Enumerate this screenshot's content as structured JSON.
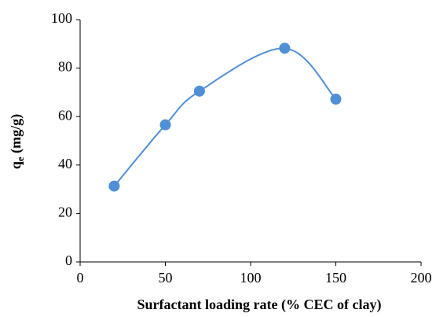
{
  "chart_data": {
    "type": "scatter-smooth",
    "x": [
      20,
      50,
      70,
      120,
      150
    ],
    "values": [
      31.3,
      56.6,
      70.5,
      88.2,
      67.2
    ],
    "color": "#4f8fd6",
    "xlim": [
      0,
      200
    ],
    "xticks": [
      0,
      50,
      100,
      150,
      200
    ],
    "ylim": [
      0,
      100
    ],
    "yticks": [
      0,
      20,
      40,
      60,
      80,
      100
    ],
    "grid": false,
    "xlabel": "Surfactant loading rate (% CEC of clay)",
    "ylabel": "q",
    "ylabel_sub": "e",
    "ylabel_unit": "(mg/g)"
  }
}
